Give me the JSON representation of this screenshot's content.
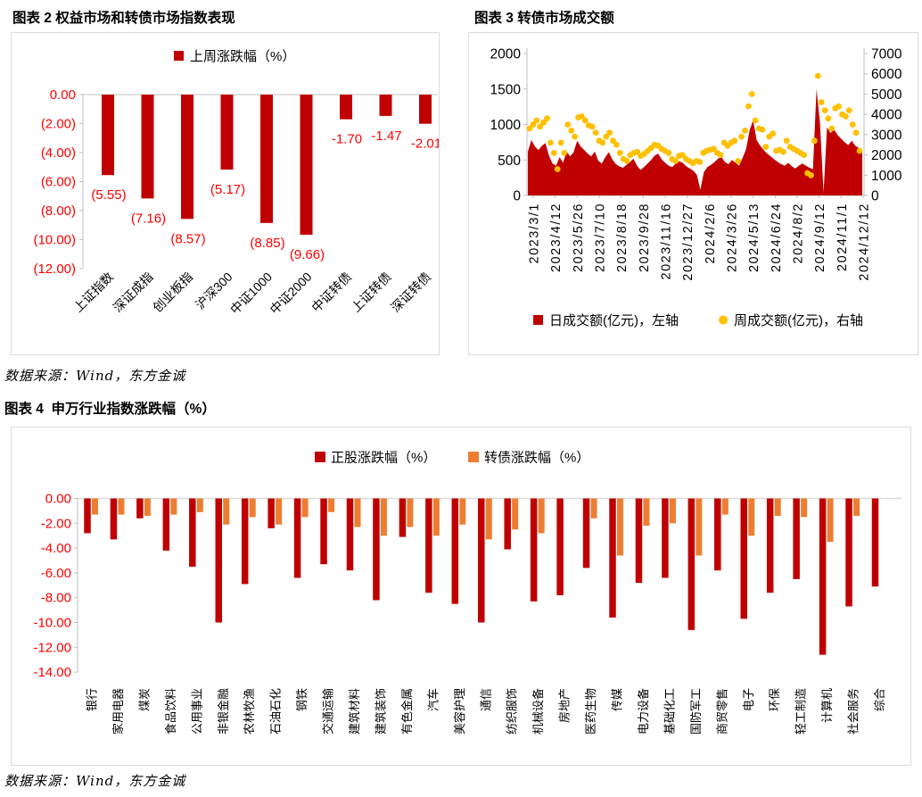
{
  "source_note": "数据来源：Wind，东方金诚",
  "colors": {
    "dark_red": "#C00000",
    "orange": "#ED7D31",
    "yellow": "#FFC000",
    "red_text": "#FF0000",
    "axis_line": "#BFBFBF",
    "zero_line": "#D9D9D9",
    "text": "#000000"
  },
  "chart_data": [
    {
      "id": "fig2",
      "type": "bar",
      "title": "图表 2 权益市场和转债市场指数表现",
      "legend": [
        {
          "label": "上周涨跌幅（%）",
          "color": "#C00000",
          "marker": "square"
        }
      ],
      "legend_position": "top-center",
      "grid": false,
      "ylim": [
        -12,
        0
      ],
      "y_ticks": [
        "0.00",
        "(2.00)",
        "(4.00)",
        "(6.00)",
        "(8.00)",
        "(10.00)",
        "(12.00)"
      ],
      "categories": [
        "上证指数",
        "深证成指",
        "创业板指",
        "沪深300",
        "中证1000",
        "中证2000",
        "中证转债",
        "上证转债",
        "深证转债"
      ],
      "values": [
        -5.55,
        -7.16,
        -8.57,
        -5.17,
        -8.85,
        -9.66,
        -1.7,
        -1.47,
        -2.01
      ],
      "value_labels": [
        "(5.55)",
        "(7.16)",
        "(8.57)",
        "(5.17)",
        "(8.85)",
        "(9.66)",
        "-1.70",
        "-1.47",
        "-2.01"
      ]
    },
    {
      "id": "fig3",
      "type": "area",
      "title": "图表 3 转债市场成交额",
      "legend": [
        {
          "label": "日成交额(亿元)，左轴",
          "color": "#C00000",
          "marker": "square"
        },
        {
          "label": "周成交额(亿元)，右轴",
          "color": "#FFC000",
          "marker": "dot"
        }
      ],
      "legend_position": "bottom-center",
      "grid": false,
      "x_tick_labels": [
        "2023/3/1",
        "2023/4/12",
        "2023/5/26",
        "2023/7/10",
        "2023/8/18",
        "2023/9/28",
        "2023/11/16",
        "2023/12/27",
        "2024/2/6",
        "2024/3/26",
        "2024/5/13",
        "2024/6/24",
        "2024/8/2",
        "2024/9/12",
        "2024/11/1",
        "2024/12/12"
      ],
      "left_axis": {
        "min": 0,
        "max": 2000,
        "ticks": [
          "2000",
          "1500",
          "1000",
          "500",
          "0"
        ]
      },
      "right_axis": {
        "min": 0,
        "max": 7000,
        "ticks": [
          "7000",
          "6000",
          "5000",
          "4000",
          "3000",
          "2000",
          "1000",
          "0"
        ]
      },
      "series": [
        {
          "name": "日成交额(亿元)，左轴",
          "type": "area",
          "axis": "left",
          "values": [
            620,
            780,
            690,
            640,
            700,
            740,
            560,
            450,
            420,
            540,
            460,
            620,
            550,
            610,
            770,
            690,
            640,
            590,
            550,
            620,
            490,
            450,
            540,
            610,
            510,
            440,
            410,
            390,
            430,
            470,
            520,
            420,
            360,
            400,
            450,
            500,
            560,
            590,
            510,
            460,
            420,
            400,
            450,
            480,
            460,
            410,
            380,
            350,
            290,
            80,
            330,
            400,
            430,
            470,
            520,
            540,
            470,
            440,
            500,
            460,
            420,
            530,
            650,
            920,
            1060,
            780,
            700,
            640,
            590,
            550,
            510,
            470,
            440,
            420,
            460,
            410,
            380,
            420,
            450,
            420,
            390,
            370,
            1500,
            1020,
            40,
            960,
            880,
            930,
            850,
            800,
            750,
            710,
            770,
            700,
            670,
            640
          ]
        },
        {
          "name": "周成交额(亿元)，右轴",
          "type": "scatter",
          "axis": "right",
          "values": [
            3300,
            3500,
            3700,
            3400,
            3600,
            3800,
            2600,
            2100,
            1300,
            2600,
            2100,
            3500,
            3200,
            2900,
            3850,
            3900,
            3700,
            3450,
            3400,
            3100,
            2700,
            2600,
            2900,
            3100,
            2700,
            2500,
            2100,
            1800,
            1700,
            2000,
            2100,
            2150,
            1950,
            2050,
            2200,
            2350,
            2500,
            2450,
            2300,
            2200,
            2100,
            1800,
            1700,
            1950,
            2000,
            1800,
            1700,
            1600,
            1700,
            1650,
            2100,
            2200,
            2250,
            2300,
            2100,
            2000,
            2600,
            2450,
            2600,
            2700,
            1700,
            2900,
            3200,
            4400,
            5000,
            3700,
            3300,
            3250,
            2400,
            2900,
            3050,
            2200,
            2250,
            2150,
            2700,
            2400,
            2300,
            2200,
            2100,
            2000,
            1100,
            1000,
            2700,
            5900,
            4600,
            4200,
            3800,
            3300,
            4300,
            4400,
            4000,
            3900,
            4200,
            3500,
            3100,
            2200
          ]
        }
      ]
    },
    {
      "id": "fig4",
      "type": "bar",
      "title": "图表 4  申万行业指数涨跌幅（%）",
      "legend": [
        {
          "label": "正股涨跌幅（%）",
          "color": "#C00000",
          "marker": "square"
        },
        {
          "label": "转债涨跌幅（%）",
          "color": "#ED7D31",
          "marker": "square"
        }
      ],
      "legend_position": "top-center",
      "grid": false,
      "ylim": [
        -14,
        0
      ],
      "y_ticks": [
        "0.00",
        "-2.00",
        "-4.00",
        "-6.00",
        "-8.00",
        "-10.00",
        "-12.00",
        "-14.00"
      ],
      "categories": [
        "银行",
        "家用电器",
        "煤炭",
        "食品饮料",
        "公用事业",
        "非银金融",
        "农林牧渔",
        "石油石化",
        "钢铁",
        "交通运输",
        "建筑材料",
        "建筑装饰",
        "有色金属",
        "汽车",
        "美容护理",
        "通信",
        "纺织服饰",
        "机械设备",
        "房地产",
        "医药生物",
        "传媒",
        "电力设备",
        "基础化工",
        "国防军工",
        "商贸零售",
        "电子",
        "环保",
        "轻工制造",
        "计算机",
        "社会服务",
        "综合"
      ],
      "series": [
        {
          "name": "正股涨跌幅（%）",
          "values": [
            -2.8,
            -3.3,
            -1.6,
            -4.2,
            -5.5,
            -10.0,
            -6.9,
            -2.4,
            -6.4,
            -5.3,
            -5.8,
            -8.2,
            -3.1,
            -7.6,
            -8.5,
            -10.0,
            -4.1,
            -8.3,
            -7.8,
            -5.6,
            -9.6,
            -6.8,
            -6.4,
            -10.6,
            -5.8,
            -9.7,
            -7.6,
            -6.5,
            -12.6,
            -8.7,
            -7.1
          ]
        },
        {
          "name": "转债涨跌幅（%）",
          "values": [
            -1.3,
            -1.3,
            -1.4,
            -1.3,
            -1.1,
            -2.1,
            -1.5,
            -2.1,
            -1.5,
            -1.1,
            -2.3,
            -3.0,
            -2.3,
            -3.0,
            -2.1,
            -3.3,
            -2.5,
            -2.8,
            null,
            -1.6,
            -4.6,
            -2.2,
            -2.0,
            -4.6,
            -1.3,
            -3.0,
            -1.4,
            -1.5,
            -3.5,
            -1.4,
            null
          ]
        }
      ]
    }
  ]
}
